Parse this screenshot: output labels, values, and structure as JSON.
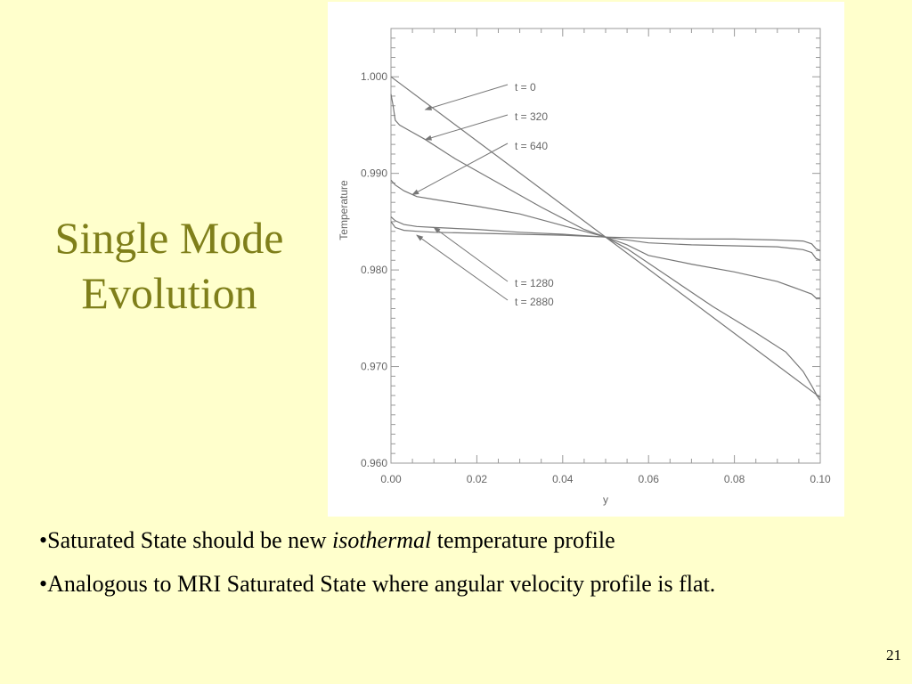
{
  "slide": {
    "title_line1": "Single Mode",
    "title_line2": "Evolution",
    "bullet1_prefix": "•Saturated State should be new ",
    "bullet1_em": "isothermal",
    "bullet1_suffix": " temperature profile",
    "bullet2": "•Analogous to MRI Saturated State where angular velocity profile is flat.",
    "page_number": "21"
  },
  "chart_data": {
    "type": "line",
    "title": "",
    "xlabel": "y",
    "ylabel": "Temperature",
    "xlim": [
      0.0,
      0.1
    ],
    "ylim": [
      0.96,
      1.005
    ],
    "xticks": [
      "0.00",
      "0.02",
      "0.04",
      "0.06",
      "0.08",
      "0.10"
    ],
    "xtick_values": [
      0.0,
      0.02,
      0.04,
      0.06,
      0.08,
      0.1
    ],
    "yticks": [
      "0.960",
      "0.970",
      "0.980",
      "0.990",
      "1.000"
    ],
    "ytick_values": [
      0.96,
      0.97,
      0.98,
      0.99,
      1.0
    ],
    "grid": false,
    "line_color": "#777777",
    "series": [
      {
        "name": "t = 0",
        "x": [
          0.0,
          0.1
        ],
        "values": [
          1.0,
          0.9668
        ]
      },
      {
        "name": "t = 320",
        "x": [
          0.0,
          0.0005,
          0.001,
          0.002,
          0.004,
          0.008,
          0.015,
          0.025,
          0.035,
          0.045,
          0.05,
          0.055,
          0.065,
          0.075,
          0.085,
          0.092,
          0.096,
          0.098,
          0.099,
          0.0995,
          0.1
        ],
        "values": [
          0.9982,
          0.997,
          0.9955,
          0.995,
          0.9945,
          0.9935,
          0.9915,
          0.989,
          0.9865,
          0.9842,
          0.9834,
          0.9822,
          0.9792,
          0.9762,
          0.9735,
          0.9715,
          0.9695,
          0.968,
          0.9672,
          0.9668,
          0.9665
        ]
      },
      {
        "name": "t = 640",
        "x": [
          0.0,
          0.001,
          0.003,
          0.006,
          0.01,
          0.02,
          0.03,
          0.04,
          0.05,
          0.055,
          0.06,
          0.07,
          0.08,
          0.09,
          0.095,
          0.098,
          0.099,
          0.0995,
          0.1
        ],
        "values": [
          0.9893,
          0.9888,
          0.9882,
          0.9876,
          0.9873,
          0.9866,
          0.9858,
          0.9846,
          0.9834,
          0.9826,
          0.9815,
          0.9806,
          0.9798,
          0.9788,
          0.978,
          0.9775,
          0.9771,
          0.9771,
          0.9771
        ]
      },
      {
        "name": "t = 1280",
        "x": [
          0.0,
          0.001,
          0.003,
          0.006,
          0.01,
          0.02,
          0.03,
          0.04,
          0.05,
          0.06,
          0.07,
          0.08,
          0.09,
          0.096,
          0.098,
          0.099,
          0.1
        ],
        "values": [
          0.9855,
          0.9851,
          0.9847,
          0.9845,
          0.9844,
          0.9842,
          0.9839,
          0.9837,
          0.9834,
          0.9828,
          0.9826,
          0.9825,
          0.9824,
          0.9821,
          0.9818,
          0.9812,
          0.981
        ]
      },
      {
        "name": "t = 2880",
        "x": [
          0.0,
          0.001,
          0.003,
          0.006,
          0.01,
          0.02,
          0.03,
          0.04,
          0.05,
          0.06,
          0.07,
          0.08,
          0.09,
          0.096,
          0.098,
          0.099,
          0.1
        ],
        "values": [
          0.985,
          0.9844,
          0.9841,
          0.984,
          0.9839,
          0.9838,
          0.9837,
          0.9836,
          0.9834,
          0.9833,
          0.9832,
          0.9832,
          0.9831,
          0.983,
          0.9827,
          0.9822,
          0.982
        ]
      }
    ],
    "annotations": [
      {
        "text": "t = 0",
        "arrow_to": [
          0.008,
          0.9966
        ]
      },
      {
        "text": "t = 320",
        "arrow_to": [
          0.008,
          0.9935
        ]
      },
      {
        "text": "t = 640",
        "arrow_to": [
          0.005,
          0.9878
        ]
      },
      {
        "text": "t = 1280",
        "arrow_to": [
          0.01,
          0.9844
        ]
      },
      {
        "text": "t = 2880",
        "arrow_to": [
          0.006,
          0.9836
        ]
      }
    ]
  }
}
